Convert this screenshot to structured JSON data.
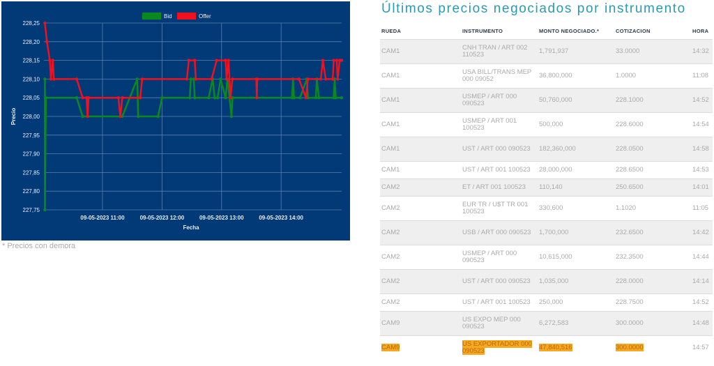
{
  "chart_data": {
    "type": "line",
    "ylabel": "Precio",
    "xlabel": "Fecha",
    "ylim": [
      227.75,
      228.25
    ],
    "yticks": [
      "228,25",
      "228,20",
      "228,15",
      "228,10",
      "228,05",
      "228,00",
      "227,95",
      "227,90",
      "227,85",
      "227,80",
      "227,75"
    ],
    "xlim_minutes": [
      601,
      901
    ],
    "xticks": [
      {
        "minute": 660,
        "label": "09-05-2023 11:00"
      },
      {
        "minute": 720,
        "label": "09-05-2023 12:00"
      },
      {
        "minute": 780,
        "label": "09-05-2023 13:00"
      },
      {
        "minute": 840,
        "label": "09-05-2023 14:00"
      }
    ],
    "legend": {
      "position": "top-center"
    },
    "grid": true,
    "series": [
      {
        "name": "Bid",
        "color": "#0a8a1e",
        "points": [
          [
            602,
            228.1
          ],
          [
            602,
            227.75
          ],
          [
            603,
            228.05
          ],
          [
            634,
            228.05
          ],
          [
            640,
            228.0
          ],
          [
            680,
            228.0
          ],
          [
            695,
            228.1
          ],
          [
            696,
            228.0
          ],
          [
            716,
            228.0
          ],
          [
            720,
            228.05
          ],
          [
            748,
            228.05
          ],
          [
            749,
            228.1
          ],
          [
            752,
            228.1
          ],
          [
            753,
            228.05
          ],
          [
            767,
            228.05
          ],
          [
            771,
            228.1
          ],
          [
            773,
            228.05
          ],
          [
            776,
            228.05
          ],
          [
            779,
            228.1
          ],
          [
            784,
            228.05
          ],
          [
            786,
            228.1
          ],
          [
            790,
            228.0
          ],
          [
            791,
            228.05
          ],
          [
            851,
            228.05
          ],
          [
            852,
            228.1
          ],
          [
            853,
            228.05
          ],
          [
            859,
            228.05
          ],
          [
            866,
            228.1
          ],
          [
            867,
            228.05
          ],
          [
            875,
            228.05
          ],
          [
            876,
            228.1
          ],
          [
            878,
            228.05
          ],
          [
            893,
            228.05
          ],
          [
            894,
            228.1
          ],
          [
            895,
            228.05
          ],
          [
            901,
            228.05
          ]
        ]
      },
      {
        "name": "Offer",
        "color": "#f0101e",
        "points": [
          [
            602,
            228.25
          ],
          [
            604,
            228.2
          ],
          [
            607,
            228.15
          ],
          [
            608,
            228.1
          ],
          [
            610,
            228.15
          ],
          [
            611,
            228.1
          ],
          [
            634,
            228.1
          ],
          [
            640,
            228.05
          ],
          [
            644,
            228.05
          ],
          [
            645,
            228.0
          ],
          [
            646,
            228.05
          ],
          [
            676,
            228.05
          ],
          [
            678,
            228.0
          ],
          [
            680,
            228.05
          ],
          [
            698,
            228.05
          ],
          [
            700,
            228.1
          ],
          [
            745,
            228.1
          ],
          [
            747,
            228.15
          ],
          [
            753,
            228.15
          ],
          [
            754,
            228.1
          ],
          [
            770,
            228.1
          ],
          [
            775,
            228.15
          ],
          [
            784,
            228.15
          ],
          [
            785,
            228.1
          ],
          [
            787,
            228.15
          ],
          [
            789,
            228.05
          ],
          [
            791,
            228.1
          ],
          [
            815,
            228.1
          ],
          [
            815.5,
            228.05
          ],
          [
            816,
            228.1
          ],
          [
            858,
            228.1
          ],
          [
            865,
            228.05
          ],
          [
            867,
            228.1
          ],
          [
            880,
            228.1
          ],
          [
            882,
            228.15
          ],
          [
            885,
            228.1
          ],
          [
            892,
            228.1
          ],
          [
            893,
            228.15
          ],
          [
            896,
            228.15
          ],
          [
            897,
            228.1
          ],
          [
            899,
            228.15
          ],
          [
            901,
            228.15
          ]
        ]
      }
    ]
  },
  "footnote": "* Precios con demora",
  "table": {
    "title": "Últimos precios negociados por instrumento",
    "headers": [
      "RUEDA",
      "INSTRUMENTO",
      "MONTO NEGOCIADO.*",
      "COTIZACION",
      "HORA"
    ],
    "rows": [
      [
        "CAM1",
        "CNH TRAN / ART 002 110523",
        "1,791,937",
        "33.0000",
        "14:32"
      ],
      [
        "CAM1",
        "USA BILL/TRANS MEP 000 09052",
        "36,800,000",
        "1.0000",
        "11:08"
      ],
      [
        "CAM1",
        "USMEP / ART 000 090523",
        "50,760,000",
        "228.1000",
        "14:52"
      ],
      [
        "CAM1",
        "USMEP / ART 001 100523",
        "500,000",
        "228.6000",
        "14:54"
      ],
      [
        "CAM1",
        "UST / ART 000 090523",
        "182,360,000",
        "228.0500",
        "14:58"
      ],
      [
        "CAM1",
        "UST / ART 001 100523",
        "28,000,000",
        "228.6500",
        "14:53"
      ],
      [
        "CAM2",
        "ET / ART 001 100523",
        "110,140",
        "250.6500",
        "14:01"
      ],
      [
        "CAM2",
        "EUR TR / U$T TR 001 100523",
        "330,600",
        "1.1020",
        "11:05"
      ],
      [
        "CAM2",
        "USB / ART 000 090523",
        "1,700,000",
        "232.6500",
        "14:42"
      ],
      [
        "CAM2",
        "USMEP / ART 000 090523",
        "10,615,000",
        "232.3500",
        "14:44"
      ],
      [
        "CAM2",
        "UST / ART 000 090523",
        "1,035,000",
        "228.0000",
        "14:14"
      ],
      [
        "CAM2",
        "UST / ART 001 100523",
        "250,000",
        "228.7500",
        "14:52"
      ],
      [
        "CAM9",
        "US EXPO MEP 000 090523",
        "6,272,583",
        "300.0000",
        "14:48"
      ],
      [
        "CAM9",
        "US EXPORTADOR 000 090523",
        "47,840,516",
        "300.0000",
        "14:57"
      ]
    ],
    "highlight_color": "#f7a823"
  }
}
